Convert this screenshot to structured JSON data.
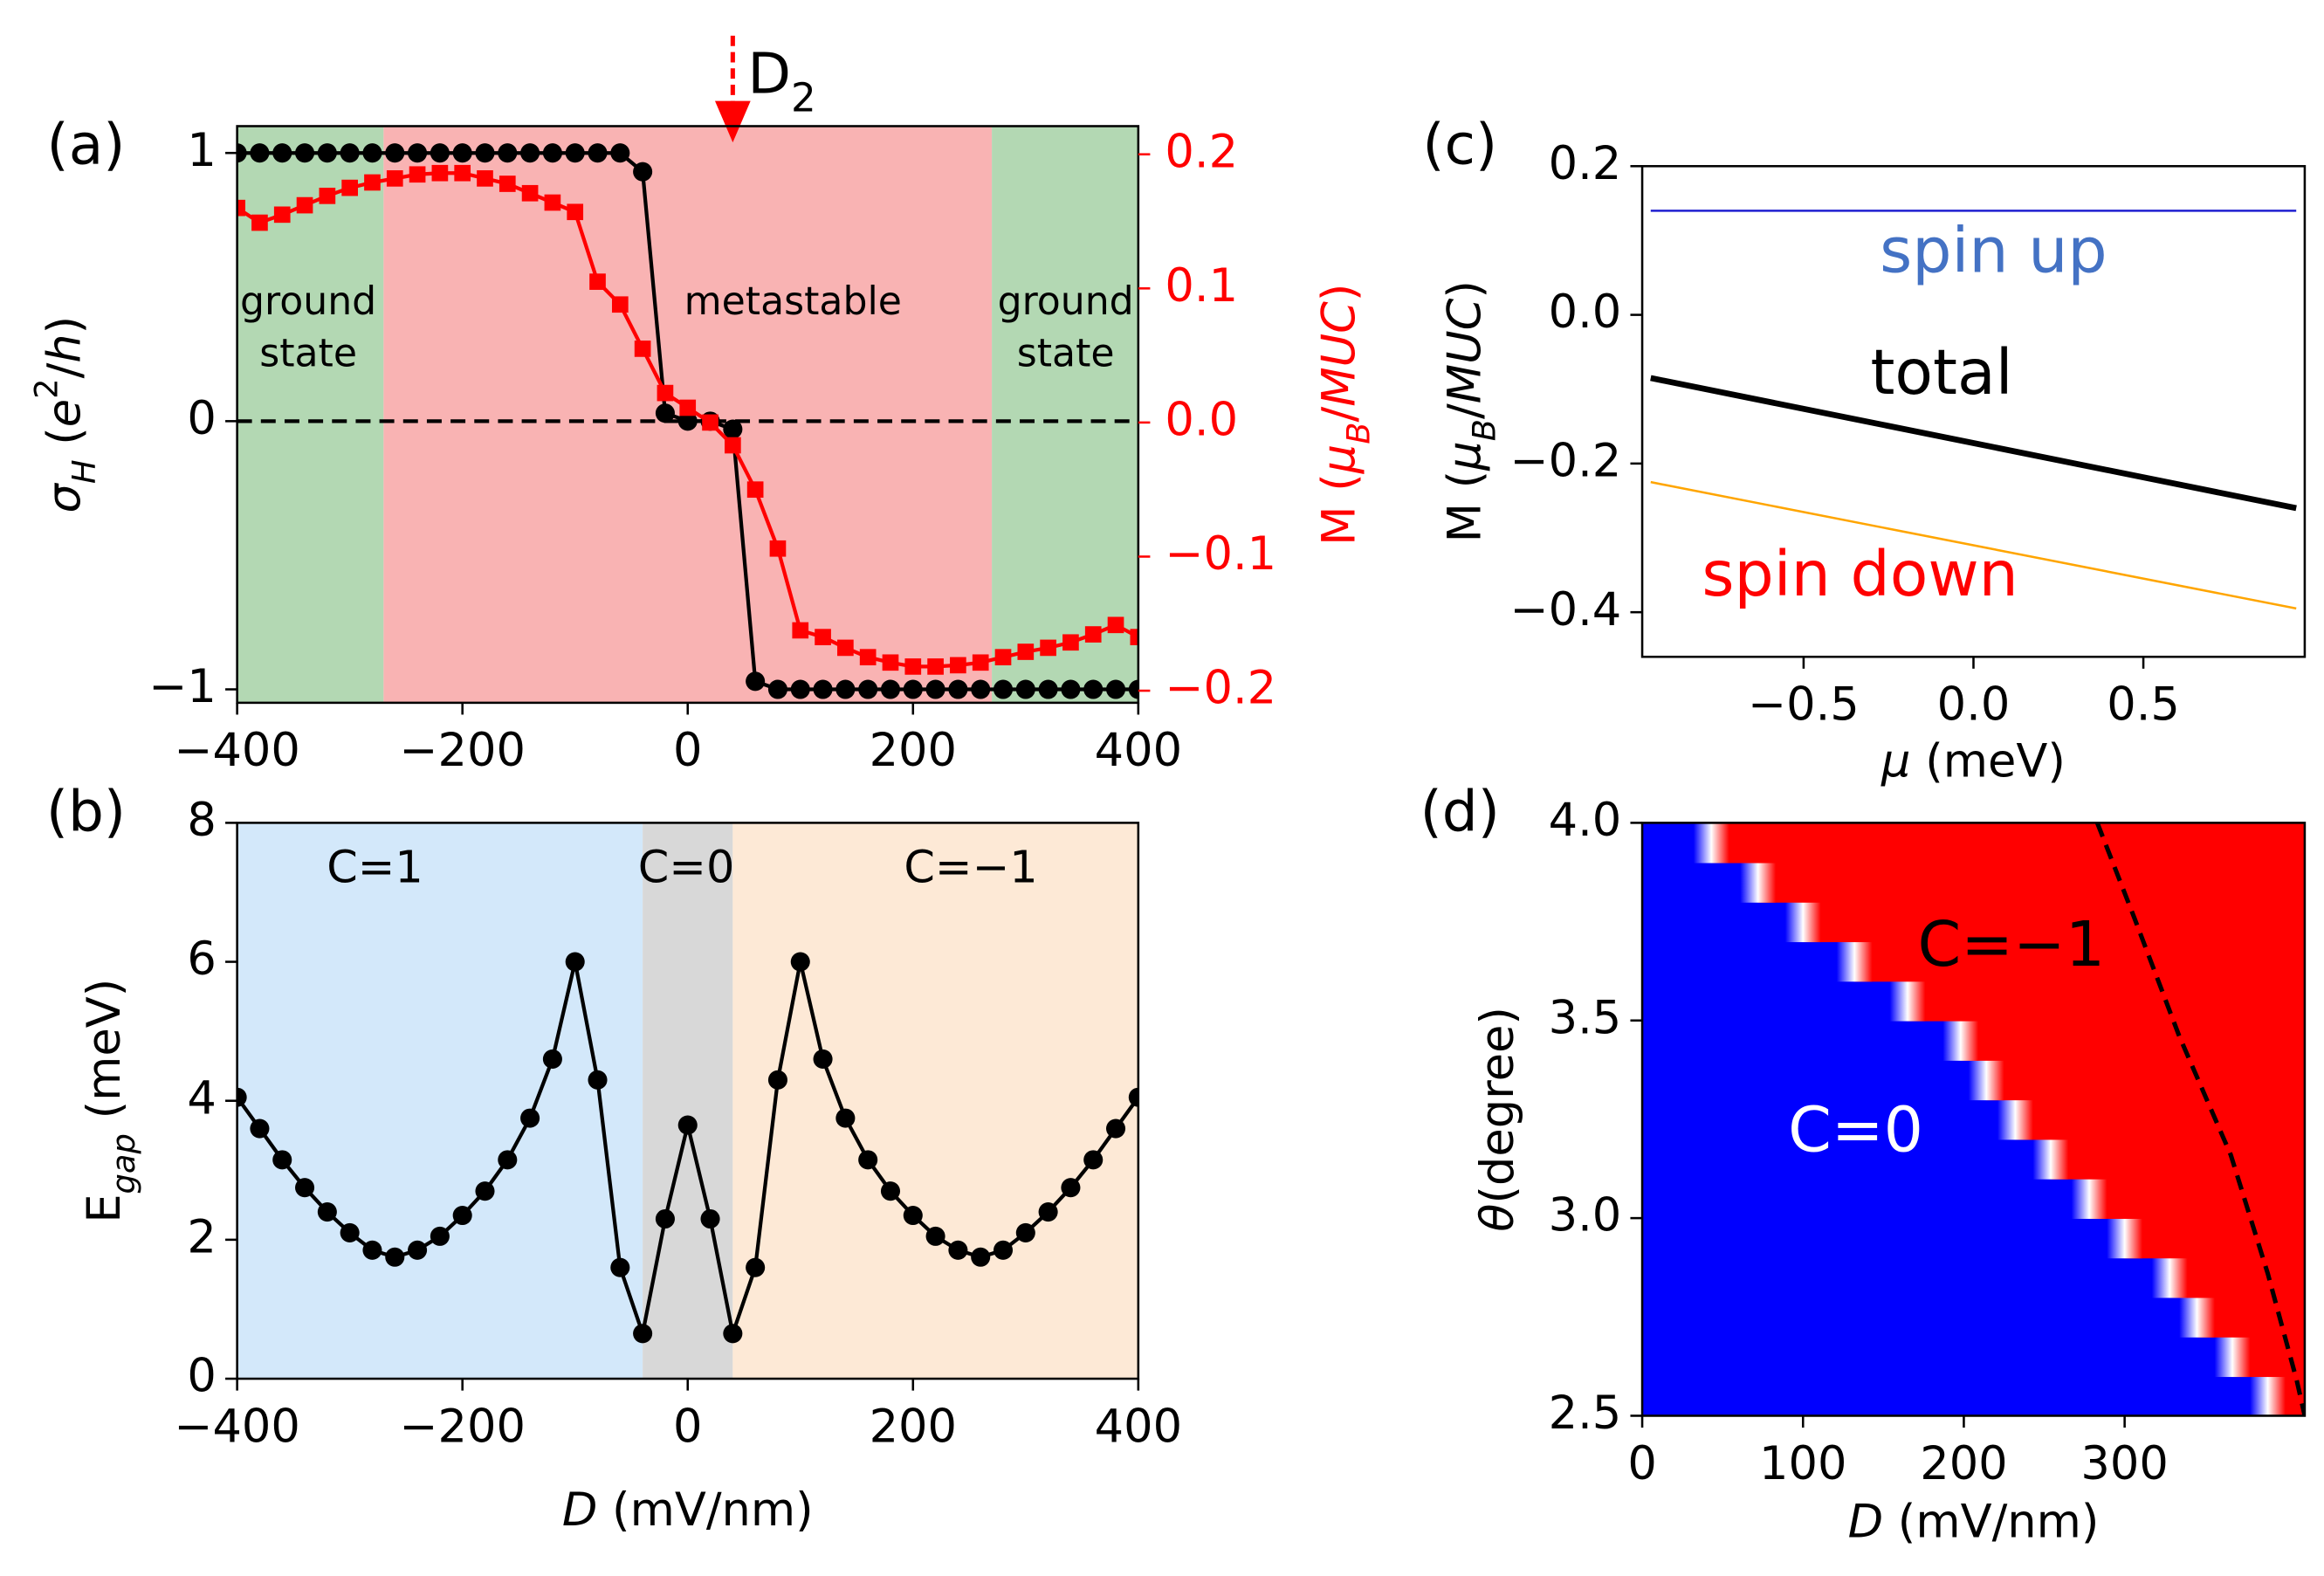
{
  "chart_data": [
    {
      "type": "line",
      "panel": "(a)",
      "xlim": [
        -400,
        400
      ],
      "xticks": [
        {
          "value": -400,
          "label": "−400"
        },
        {
          "value": -200,
          "label": "−200"
        },
        0,
        200,
        400
      ],
      "ylim": [
        -1.05,
        1.1
      ],
      "yticks": [
        {
          "value": -1,
          "label": "−1"
        },
        0,
        1
      ],
      "y2lim": [
        -0.209,
        0.221
      ],
      "y2ticks": [
        {
          "value": -0.2,
          "label": "−0.2"
        },
        {
          "value": -0.1,
          "label": "−0.1"
        },
        {
          "value": 0,
          "label": "0.0"
        },
        0.1,
        0.2
      ],
      "ylabel": [
        {
          "text": "σ",
          "italic": true
        },
        {
          "text": "H",
          "italic": true,
          "sub": true
        },
        {
          "text": " ("
        },
        {
          "text": "e",
          "italic": true
        },
        {
          "text": "2",
          "sup": true
        },
        {
          "text": "/"
        },
        {
          "text": "h",
          "italic": true
        },
        {
          "text": ")"
        }
      ],
      "y2label": [
        {
          "text": "M ("
        },
        {
          "text": "μ",
          "italic": true
        },
        {
          "text": "B",
          "italic": true,
          "sub": true
        },
        {
          "text": "/"
        },
        {
          "text": "MUC",
          "italic": true
        },
        {
          "text": ")"
        }
      ],
      "y2color": "#ff0000",
      "regions": [
        {
          "from": -400,
          "to": -270,
          "color": "#b3d8b3",
          "label": [
            "ground",
            "state"
          ]
        },
        {
          "from": -270,
          "to": 270,
          "color": "#f9b3b3",
          "label": [
            "metastable"
          ]
        },
        {
          "from": 270,
          "to": 400,
          "color": "#b3d8b3",
          "label": [
            "ground",
            "state"
          ]
        }
      ],
      "hline": 0,
      "arrow": {
        "x": 40,
        "color": "#ff0000",
        "text": [
          {
            "text": "D"
          },
          {
            "text": "2",
            "sub": true
          }
        ]
      },
      "x": [
        -400,
        -380,
        -360,
        -340,
        -320,
        -300,
        -280,
        -260,
        -240,
        -220,
        -200,
        -180,
        -160,
        -140,
        -120,
        -100,
        -80,
        -60,
        -40,
        -20,
        0,
        20,
        40,
        60,
        80,
        100,
        120,
        140,
        160,
        180,
        200,
        220,
        240,
        260,
        280,
        300,
        320,
        340,
        360,
        380,
        400
      ],
      "series": [
        {
          "color": "#000000",
          "marker": "circle",
          "values": [
            1,
            1,
            1,
            1,
            1,
            1,
            1,
            1,
            1,
            1,
            1,
            1,
            1,
            1,
            1,
            1,
            1,
            1,
            0.93,
            0.03,
            0,
            0,
            -0.03,
            -0.97,
            -1,
            -1,
            -1,
            -1,
            -1,
            -1,
            -1,
            -1,
            -1,
            -1,
            -1,
            -1,
            -1,
            -1,
            -1,
            -1,
            -1
          ]
        },
        {
          "color": "#ff0000",
          "marker": "square",
          "axis": "y2",
          "values": [
            0.16,
            0.149,
            0.155,
            0.162,
            0.169,
            0.175,
            0.179,
            0.182,
            0.185,
            0.186,
            0.186,
            0.182,
            0.178,
            0.171,
            0.164,
            0.157,
            0.105,
            0.088,
            0.055,
            0.022,
            0.011,
            0,
            -0.017,
            -0.05,
            -0.094,
            -0.155,
            -0.16,
            -0.168,
            -0.175,
            -0.179,
            -0.182,
            -0.182,
            -0.181,
            -0.179,
            -0.175,
            -0.171,
            -0.168,
            -0.164,
            -0.158,
            -0.151,
            -0.16
          ]
        }
      ]
    },
    {
      "type": "line",
      "panel": "(b)",
      "xlim": [
        -400,
        400
      ],
      "xticks": [
        {
          "value": -400,
          "label": "−400"
        },
        {
          "value": -200,
          "label": "−200"
        },
        0,
        200,
        400
      ],
      "ylim": [
        0,
        8
      ],
      "yticks": [
        0,
        2,
        4,
        6,
        8
      ],
      "xlabel": [
        {
          "text": "D",
          "italic": true
        },
        {
          "text": " (mV/nm)"
        }
      ],
      "ylabel": [
        {
          "text": "E"
        },
        {
          "text": "gap",
          "italic": true,
          "sub": true
        },
        {
          "text": " (meV)"
        }
      ],
      "regions": [
        {
          "from": -400,
          "to": -40,
          "color": "#d3e8fa",
          "label": [
            "C=1"
          ]
        },
        {
          "from": -40,
          "to": 40,
          "color": "#d8d8d8",
          "label": [
            "C=0"
          ]
        },
        {
          "from": 40,
          "to": 400,
          "color": "#fde9d6",
          "label": [
            "C=−1"
          ]
        }
      ],
      "x": [
        -400,
        -380,
        -360,
        -340,
        -320,
        -300,
        -280,
        -260,
        -240,
        -220,
        -200,
        -180,
        -160,
        -140,
        -120,
        -100,
        -80,
        -60,
        -40,
        -20,
        0,
        20,
        40,
        60,
        80,
        100,
        120,
        140,
        160,
        180,
        200,
        220,
        240,
        260,
        280,
        300,
        320,
        340,
        360,
        380,
        400
      ],
      "series": [
        {
          "color": "#000000",
          "marker": "circle",
          "values": [
            4.05,
            3.6,
            3.15,
            2.75,
            2.4,
            2.1,
            1.85,
            1.75,
            1.85,
            2.05,
            2.35,
            2.7,
            3.15,
            3.75,
            4.6,
            6.0,
            4.3,
            1.6,
            0.65,
            2.3,
            3.65,
            2.3,
            0.65,
            1.6,
            4.3,
            6.0,
            4.6,
            3.75,
            3.15,
            2.7,
            2.35,
            2.05,
            1.85,
            1.75,
            1.85,
            2.1,
            2.4,
            2.75,
            3.15,
            3.6,
            4.05
          ]
        }
      ]
    },
    {
      "type": "line",
      "panel": "(c)",
      "xlim": [
        -0.975,
        0.975
      ],
      "xticks": [
        {
          "value": -0.5,
          "label": "−0.5"
        },
        {
          "value": 0,
          "label": "0.0"
        },
        0.5
      ],
      "ylim": [
        -0.46,
        0.2
      ],
      "yticks": [
        {
          "value": -0.4,
          "label": "−0.4"
        },
        {
          "value": -0.2,
          "label": "−0.2"
        },
        {
          "value": 0,
          "label": "0.0"
        },
        0.2
      ],
      "xlabel": [
        {
          "text": "μ",
          "italic": true
        },
        {
          "text": " (meV)"
        }
      ],
      "ylabel": [
        {
          "text": "M ("
        },
        {
          "text": "μ",
          "italic": true
        },
        {
          "text": "B",
          "italic": true,
          "sub": true
        },
        {
          "text": "/"
        },
        {
          "text": "MUC",
          "italic": true
        },
        {
          "text": ")"
        }
      ],
      "x": [
        -0.95,
        0.95
      ],
      "series": [
        {
          "color": "#1f1fd0",
          "linewidth": 1.5,
          "values": [
            0.14,
            0.14
          ]
        },
        {
          "color": "#000000",
          "linewidth": 4,
          "values": [
            -0.085,
            -0.26
          ]
        },
        {
          "color": "#ffa500",
          "linewidth": 1.5,
          "values": [
            -0.225,
            -0.395
          ]
        }
      ],
      "annotations": [
        {
          "text": "spin up",
          "color": "#4472c4"
        },
        {
          "text": "total",
          "color": "#000000"
        },
        {
          "text": "spin down",
          "color": "#ff0000"
        }
      ]
    },
    {
      "type": "phase",
      "panel": "(d)",
      "xlim": [
        0,
        412
      ],
      "xticks": [
        0,
        100,
        200,
        300
      ],
      "ylim": [
        2.5,
        4.0
      ],
      "yticks": [
        2.5,
        {
          "value": 3,
          "label": "3.0"
        },
        3.5,
        {
          "value": 4,
          "label": "4.0"
        }
      ],
      "xlabel": [
        {
          "text": "D",
          "italic": true
        },
        {
          "text": " (mV/nm)"
        }
      ],
      "ylabel": [
        {
          "text": "θ",
          "italic": true
        },
        {
          "text": "(degree)"
        }
      ],
      "colors": [
        "#0000ff",
        "#ff0000"
      ],
      "y": [
        2.55,
        2.65,
        2.75,
        2.85,
        2.95,
        3.05,
        3.15,
        3.25,
        3.35,
        3.45,
        3.55,
        3.65,
        3.75,
        3.85,
        3.95
      ],
      "boundary": [
        389,
        367,
        345,
        328,
        300,
        278,
        254,
        232,
        214,
        198,
        165,
        132,
        100,
        72,
        43
      ],
      "dashed_curve": {
        "x": [
          283,
          306,
          334,
          366,
          389,
          407,
          412
        ],
        "y": [
          4.0,
          3.76,
          3.46,
          3.16,
          2.86,
          2.59,
          2.5
        ]
      },
      "annotations": [
        {
          "text": "C=−1",
          "color": "#000000"
        },
        {
          "text": "C=0",
          "color": "#ffffff"
        }
      ]
    }
  ]
}
